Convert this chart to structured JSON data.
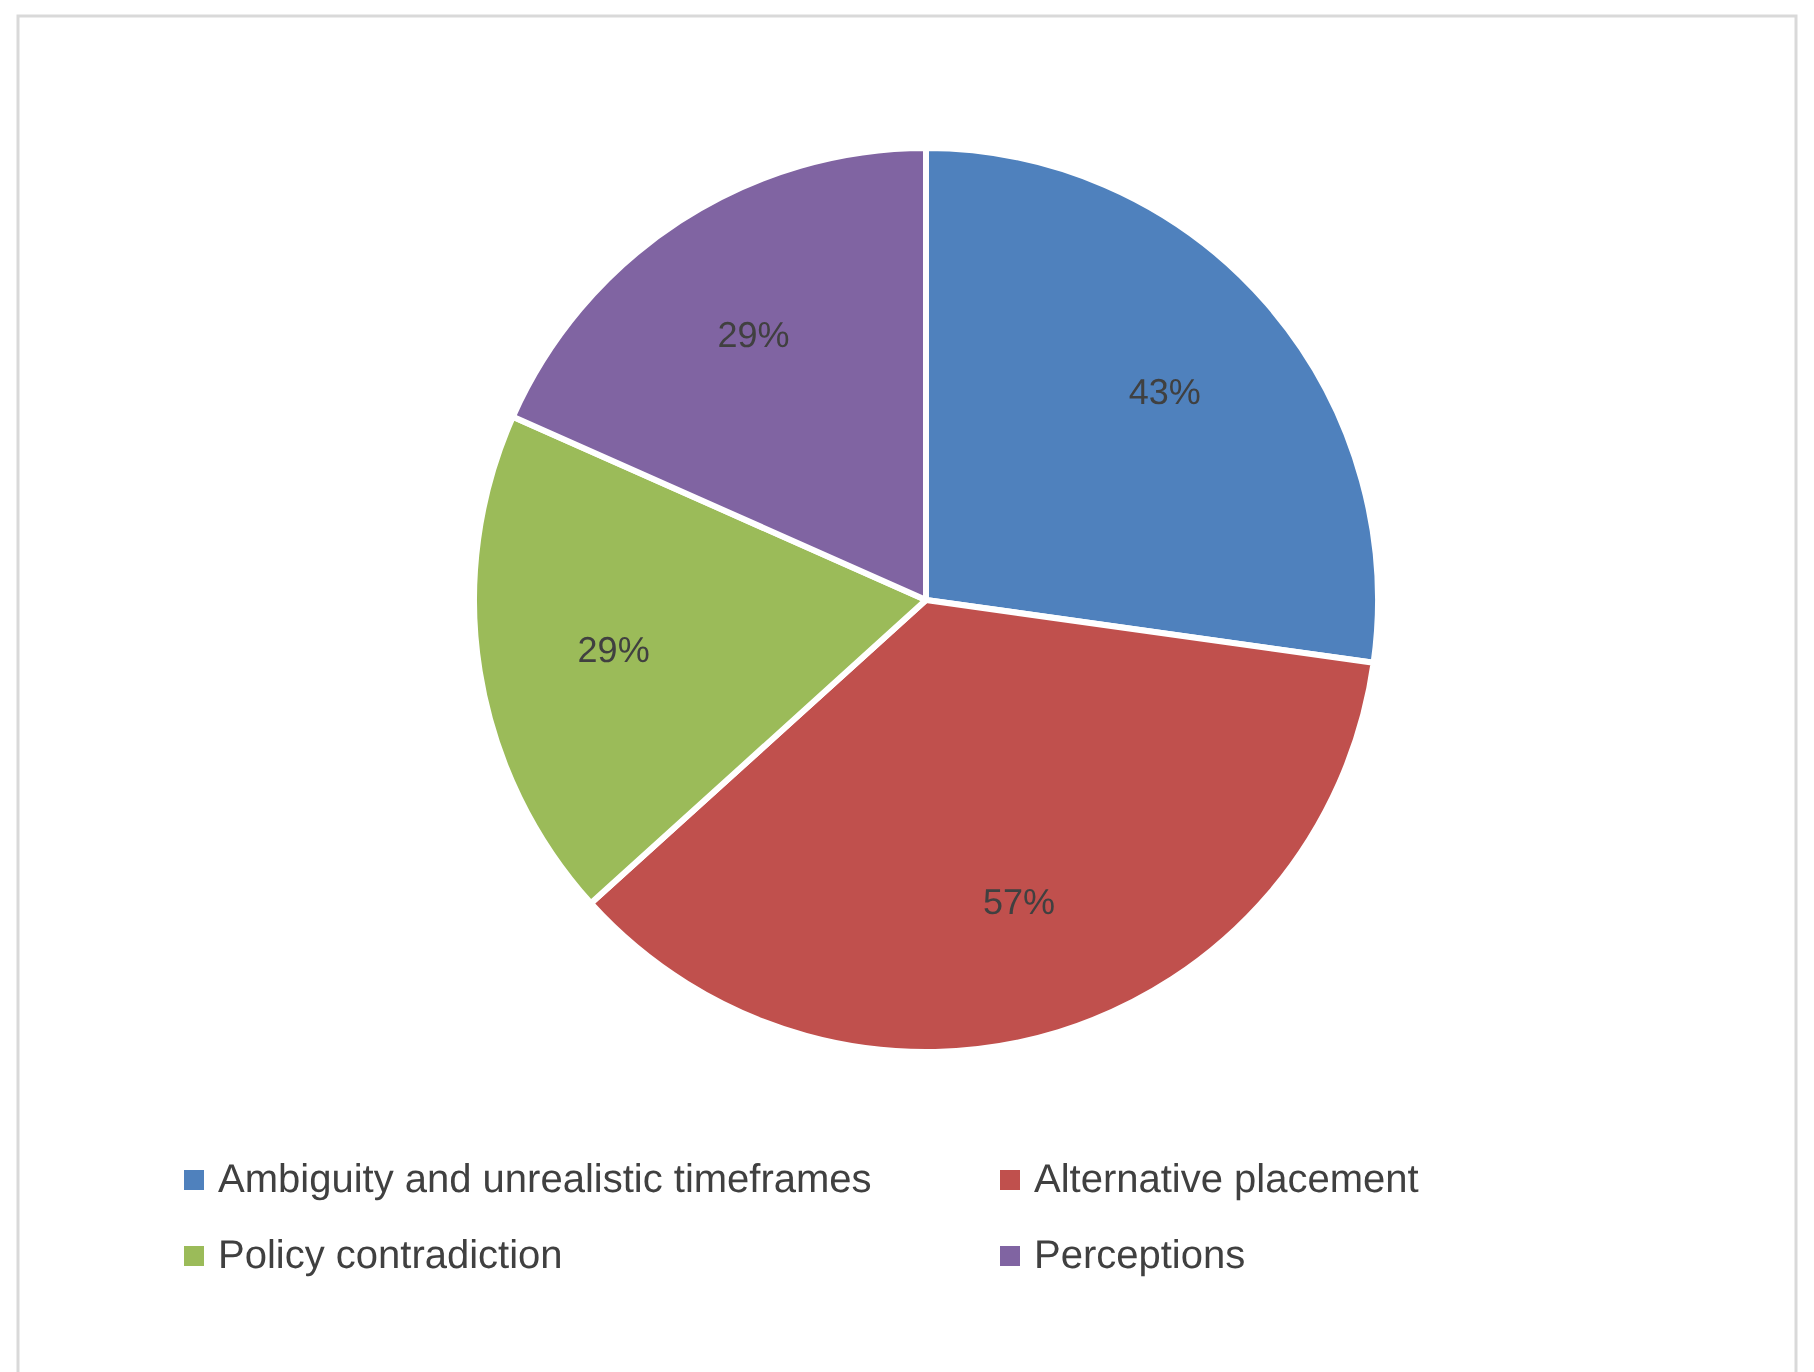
{
  "chart_data": {
    "type": "pie",
    "categories": [
      "Ambiguity and unrealistic timeframes",
      "Alternative placement",
      "Policy contradiction",
      "Perceptions"
    ],
    "values": [
      43,
      57,
      29,
      29
    ],
    "colors": [
      "#4f81bd",
      "#c0504d",
      "#9bbb59",
      "#8064a2"
    ],
    "value_labels": [
      "43%",
      "57%",
      "29%",
      "29%"
    ],
    "legend": "bottom"
  }
}
